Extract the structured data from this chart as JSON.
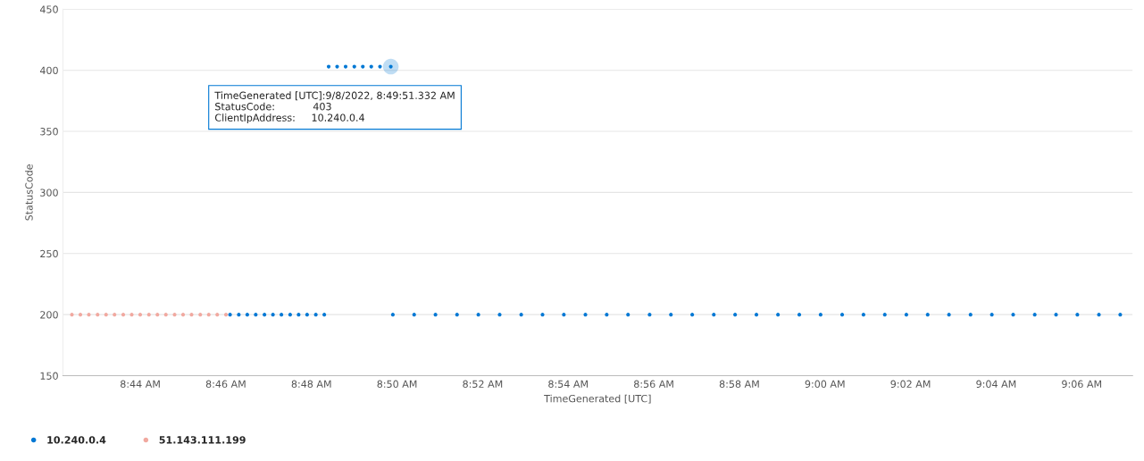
{
  "chart_data": {
    "type": "scatter",
    "xlabel": "TimeGenerated [UTC]",
    "ylabel": "StatusCode",
    "xlim": [
      8.7032,
      9.1198
    ],
    "ylim": [
      150,
      450
    ],
    "xticks": [
      {
        "value": 8.733333,
        "label": "8:44 AM"
      },
      {
        "value": 8.766667,
        "label": "8:46 AM"
      },
      {
        "value": 8.8,
        "label": "8:48 AM"
      },
      {
        "value": 8.833333,
        "label": "8:50 AM"
      },
      {
        "value": 8.866667,
        "label": "8:52 AM"
      },
      {
        "value": 8.9,
        "label": "8:54 AM"
      },
      {
        "value": 8.933333,
        "label": "8:56 AM"
      },
      {
        "value": 8.966667,
        "label": "8:58 AM"
      },
      {
        "value": 9.0,
        "label": "9:00 AM"
      },
      {
        "value": 9.033333,
        "label": "9:02 AM"
      },
      {
        "value": 9.066667,
        "label": "9:04 AM"
      },
      {
        "value": 9.1,
        "label": "9:06 AM"
      }
    ],
    "yticks": [
      150,
      200,
      250,
      300,
      350,
      400,
      450
    ],
    "grid": "y",
    "legend": "bottom left",
    "marker": "circle",
    "series": [
      {
        "name": "10.240.0.4",
        "color": "#0078d4",
        "x": [
          8.7683,
          8.7717,
          8.775,
          8.7783,
          8.7817,
          8.785,
          8.7883,
          8.7917,
          8.795,
          8.7983,
          8.8017,
          8.805,
          8.8067,
          8.81,
          8.8133,
          8.8167,
          8.82,
          8.8233,
          8.8267,
          8.8309,
          8.8317,
          8.84,
          8.8483,
          8.8567,
          8.865,
          8.8733,
          8.8817,
          8.89,
          8.8983,
          8.9067,
          8.915,
          8.9233,
          8.9317,
          8.94,
          8.9483,
          8.9567,
          8.965,
          8.9733,
          8.9817,
          8.99,
          8.9983,
          9.0067,
          9.015,
          9.0233,
          9.0317,
          9.04,
          9.0483,
          9.0567,
          9.065,
          9.0733,
          9.0817,
          9.09,
          9.0983,
          9.1067,
          9.115
        ],
        "values": [
          200,
          200,
          200,
          200,
          200,
          200,
          200,
          200,
          200,
          200,
          200,
          200,
          403,
          403,
          403,
          403,
          403,
          403,
          403,
          403,
          200,
          200,
          200,
          200,
          200,
          200,
          200,
          200,
          200,
          200,
          200,
          200,
          200,
          200,
          200,
          200,
          200,
          200,
          200,
          200,
          200,
          200,
          200,
          200,
          200,
          200,
          200,
          200,
          200,
          200,
          200,
          200,
          200,
          200,
          200
        ]
      },
      {
        "name": "51.143.111.199",
        "color": "#f1a9a0",
        "x": [
          8.7067,
          8.71,
          8.7133,
          8.7167,
          8.72,
          8.7233,
          8.7267,
          8.73,
          8.7333,
          8.7367,
          8.74,
          8.7433,
          8.7467,
          8.75,
          8.7533,
          8.7567,
          8.76,
          8.7633,
          8.7667
        ],
        "values": [
          200,
          200,
          200,
          200,
          200,
          200,
          200,
          200,
          200,
          200,
          200,
          200,
          200,
          200,
          200,
          200,
          200,
          200,
          200
        ]
      }
    ],
    "annotations": [
      {
        "text": "TimeGenerated [UTC]:9/8/2022, 8:49:51.332 AM\nStatusCode:            403\nClientIpAddress:     10.240.0.4",
        "x": 8.8309,
        "y": 403
      }
    ]
  }
}
